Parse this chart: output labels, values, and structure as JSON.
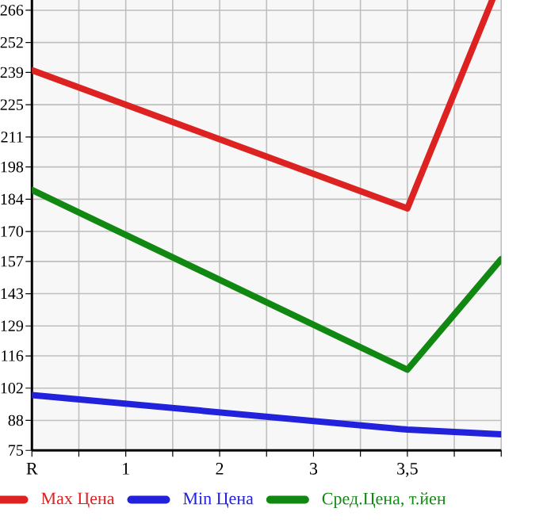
{
  "chart_data": {
    "type": "line",
    "categories": [
      "R",
      "1",
      "2",
      "3",
      "3,5",
      null
    ],
    "series": [
      {
        "name": "Max Цена",
        "color": "#dd2222",
        "values": [
          240,
          null,
          null,
          null,
          180,
          280
        ]
      },
      {
        "name": "Min Цена",
        "color": "#2222dd",
        "values": [
          99,
          null,
          null,
          null,
          84,
          82
        ]
      },
      {
        "name": "Сред.Цена, т.йен",
        "color": "#118811",
        "values": [
          188,
          null,
          null,
          null,
          110,
          158
        ]
      }
    ],
    "ylim": [
      75,
      280
    ],
    "yticks": [
      75,
      88,
      102,
      116,
      129,
      143,
      157,
      170,
      184,
      198,
      211,
      225,
      239,
      252,
      266
    ],
    "grid": true,
    "legend": "bottom",
    "marker": "none",
    "line_style": "solid"
  }
}
